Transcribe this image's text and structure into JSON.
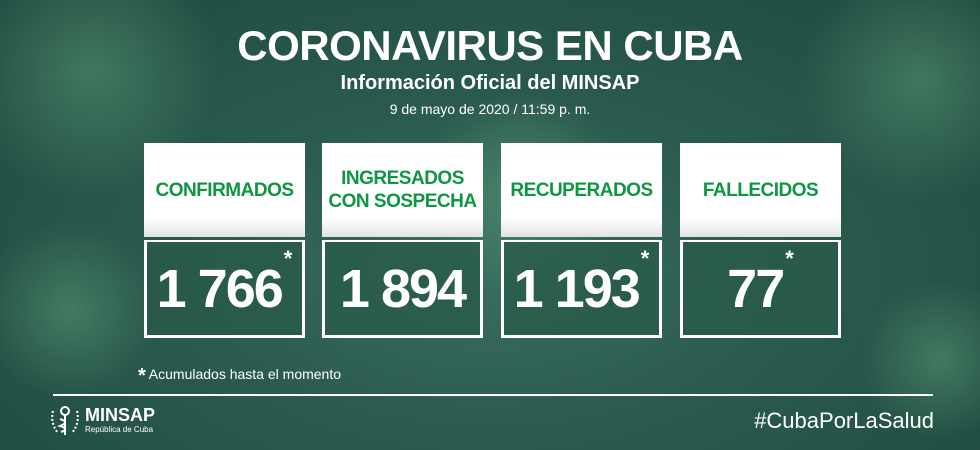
{
  "header": {
    "title": "CORONAVIRUS EN CUBA",
    "subtitle": "Información Oficial del MINSAP",
    "date": "9 de mayo de 2020 / 11:59 p. m."
  },
  "cards": [
    {
      "label": "CONFIRMADOS",
      "value": "1 766",
      "asterisk": "*"
    },
    {
      "label": "INGRESADOS CON SOSPECHA",
      "value": "1 894",
      "asterisk": ""
    },
    {
      "label": "RECUPERADOS",
      "value": "1 193",
      "asterisk": "*"
    },
    {
      "label": "FALLECIDOS",
      "value": "77",
      "asterisk": "*"
    }
  ],
  "footnote": {
    "mark": "*",
    "text": "Acumulados hasta el momento"
  },
  "footer": {
    "logo_name": "MINSAP",
    "logo_sub": "República de Cuba",
    "hashtag": "#CubaPorLaSalud"
  },
  "colors": {
    "label_green": "#0e9642",
    "background": "#2a5a4e"
  }
}
